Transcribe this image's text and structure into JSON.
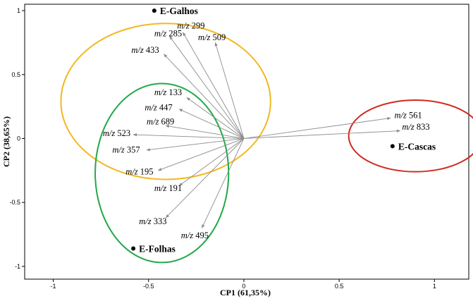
{
  "chart_data": {
    "type": "scatter",
    "xlabel": "CP1 (61,35%)",
    "ylabel": "CP2 (38,65%)",
    "xlim": [
      -1.15,
      1.18
    ],
    "ylim": [
      -1.1,
      1.05
    ],
    "x_ticks": [
      {
        "value": -1,
        "label": "-1"
      },
      {
        "value": -0.5,
        "label": "-0.5"
      },
      {
        "value": 0,
        "label": "0"
      },
      {
        "value": 0.5,
        "label": "0.5"
      },
      {
        "value": 1,
        "label": "1"
      }
    ],
    "y_ticks": [
      {
        "value": 1,
        "label": "1"
      },
      {
        "value": 0.5,
        "label": "0.5"
      },
      {
        "value": 0,
        "label": "0"
      },
      {
        "value": -0.5,
        "label": "-0.5"
      },
      {
        "value": -1,
        "label": "-1"
      }
    ],
    "loadings": [
      {
        "id": "mz299",
        "prefix": "m/z",
        "value": "299",
        "x": -0.32,
        "y": 0.83,
        "lx": -0.35,
        "ly": 0.86
      },
      {
        "id": "mz285",
        "prefix": "m/z",
        "value": "285",
        "x": -0.39,
        "y": 0.8,
        "lx": -0.47,
        "ly": 0.8
      },
      {
        "id": "mz509",
        "prefix": "m/z",
        "value": "509",
        "x": -0.15,
        "y": 0.75,
        "lx": -0.24,
        "ly": 0.77
      },
      {
        "id": "mz433",
        "prefix": "m/z",
        "value": "433",
        "x": -0.42,
        "y": 0.66,
        "lx": -0.59,
        "ly": 0.67
      },
      {
        "id": "mz133",
        "prefix": "m/z",
        "value": "133",
        "x": -0.3,
        "y": 0.32,
        "lx": -0.47,
        "ly": 0.34
      },
      {
        "id": "mz447",
        "prefix": "m/z",
        "value": "447",
        "x": -0.34,
        "y": 0.23,
        "lx": -0.52,
        "ly": 0.22
      },
      {
        "id": "mz689",
        "prefix": "m/z",
        "value": "689",
        "x": -0.41,
        "y": 0.1,
        "lx": -0.51,
        "ly": 0.11
      },
      {
        "id": "mz523",
        "prefix": "m/z",
        "value": "523",
        "x": -0.58,
        "y": 0.03,
        "lx": -0.74,
        "ly": 0.02
      },
      {
        "id": "mz357",
        "prefix": "m/z",
        "value": "357",
        "x": -0.51,
        "y": -0.09,
        "lx": -0.69,
        "ly": -0.11
      },
      {
        "id": "mz195",
        "prefix": "m/z",
        "value": "195",
        "x": -0.45,
        "y": -0.25,
        "lx": -0.62,
        "ly": -0.28
      },
      {
        "id": "mz191",
        "prefix": "m/z",
        "value": "191",
        "x": -0.34,
        "y": -0.37,
        "lx": -0.47,
        "ly": -0.41
      },
      {
        "id": "mz333",
        "prefix": "m/z",
        "value": "333",
        "x": -0.41,
        "y": -0.62,
        "lx": -0.55,
        "ly": -0.67
      },
      {
        "id": "mz495",
        "prefix": "m/z",
        "value": "495",
        "x": -0.22,
        "y": -0.7,
        "lx": -0.33,
        "ly": -0.78
      },
      {
        "id": "mz561",
        "prefix": "m/z",
        "value": "561",
        "x": 0.77,
        "y": 0.16,
        "lx": 0.79,
        "ly": 0.16
      },
      {
        "id": "mz833",
        "prefix": "m/z",
        "value": "833",
        "x": 0.82,
        "y": 0.06,
        "lx": 0.83,
        "ly": 0.07
      }
    ],
    "samples": [
      {
        "id": "e-galhos",
        "label": "E-Galhos",
        "x": -0.47,
        "y": 1.0
      },
      {
        "id": "e-cascas",
        "label": "E-Cascas",
        "x": 0.78,
        "y": -0.06
      },
      {
        "id": "e-folhas",
        "label": "E-Folhas",
        "x": -0.58,
        "y": -0.86
      }
    ],
    "ellipses": [
      {
        "id": "galhos-group",
        "color": "#f2b820",
        "cx": -0.41,
        "cy": 0.29,
        "rx": 0.55,
        "ry": 0.61
      },
      {
        "id": "folhas-group",
        "color": "#22a84a",
        "cx": -0.43,
        "cy": -0.27,
        "rx": 0.35,
        "ry": 0.7
      },
      {
        "id": "cascas-group",
        "color": "#d02a20",
        "cx": 0.9,
        "cy": 0.02,
        "rx": 0.35,
        "ry": 0.28
      }
    ],
    "arrow_color": "#8c8c8c",
    "grid": false,
    "legend": "none"
  }
}
